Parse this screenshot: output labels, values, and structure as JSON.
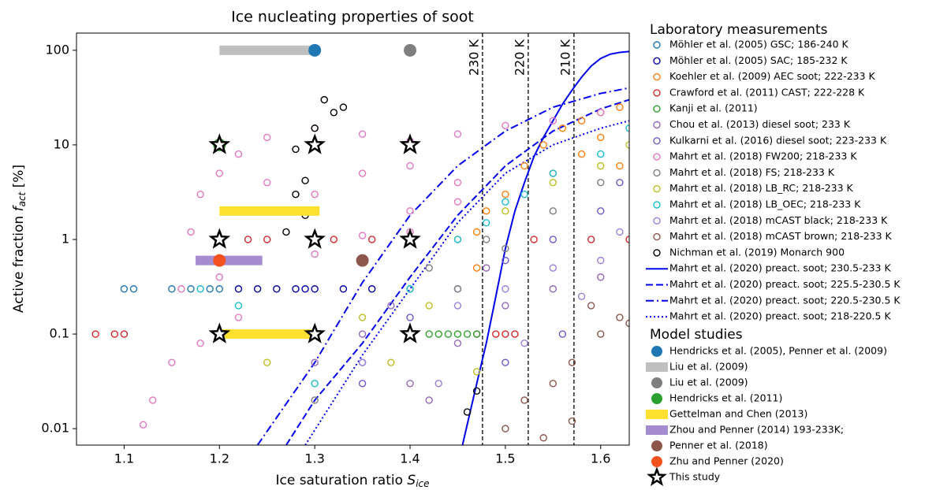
{
  "chart_data": {
    "type": "scatter",
    "title": "Ice nucleating properties of soot",
    "xlabel": "Ice saturation ratio",
    "xlabel_symbol": "S",
    "xlabel_subscript": "ice",
    "ylabel": "Active fraction",
    "ylabel_symbol": "f",
    "ylabel_subscript": "act",
    "ylabel_unit": "[%]",
    "xlim": [
      1.05,
      1.63
    ],
    "ylim": [
      0.0067,
      152
    ],
    "log_y": true,
    "xticks": [
      1.1,
      1.2,
      1.3,
      1.4,
      1.5,
      1.6
    ],
    "yticks": [
      0.01,
      0.1,
      1,
      10,
      100
    ],
    "vlines": [
      {
        "x": 1.476,
        "label": "230 K"
      },
      {
        "x": 1.524,
        "label": "220 K"
      },
      {
        "x": 1.572,
        "label": "210 K"
      }
    ],
    "lab_title": "Laboratory measurements",
    "lab_series": [
      {
        "name": "Möhler et al. (2005) GSC; 186-240 K",
        "color": "#1f77b4",
        "marker": "open-circle",
        "x": [
          1.1,
          1.11,
          1.15,
          1.17,
          1.19,
          1.2
        ],
        "values": [
          0.3,
          0.3,
          0.3,
          0.3,
          0.3,
          0.3
        ]
      },
      {
        "name": "Möhler et al. (2005) SAC; 185-232 K",
        "color": "#0000aa",
        "marker": "open-circle",
        "x": [
          1.22,
          1.24,
          1.26,
          1.28,
          1.29,
          1.3,
          1.33,
          1.36
        ],
        "values": [
          0.3,
          0.3,
          0.3,
          0.3,
          0.3,
          0.3,
          0.3,
          0.3
        ]
      },
      {
        "name": "Koehler et al. (2009) AEC soot; 222-233 K",
        "color": "#ff7f0e",
        "marker": "open-circle",
        "x": [
          1.47,
          1.47,
          1.48,
          1.5,
          1.52,
          1.54,
          1.56,
          1.58,
          1.6,
          1.62,
          1.58,
          1.6,
          1.55,
          1.62
        ],
        "values": [
          0.5,
          1.2,
          2,
          3,
          6,
          10,
          15,
          18,
          22,
          25,
          8,
          12,
          5,
          6
        ]
      },
      {
        "name": "Crawford et al. (2011) CAST; 222-228 K",
        "color": "#d62728",
        "marker": "open-circle",
        "x": [
          1.07,
          1.09,
          1.1,
          1.47,
          1.49,
          1.5,
          1.51,
          1.23,
          1.25,
          1.32,
          1.36,
          1.53,
          1.59,
          1.63
        ],
        "values": [
          0.1,
          0.1,
          0.1,
          0.1,
          0.1,
          0.1,
          0.1,
          1,
          1,
          1,
          1,
          1,
          1,
          1
        ]
      },
      {
        "name": "Kanji et al. (2011)",
        "color": "#2ca02c",
        "marker": "open-circle",
        "x": [
          1.42,
          1.43,
          1.44,
          1.45,
          1.46,
          1.47
        ],
        "values": [
          0.1,
          0.1,
          0.1,
          0.1,
          0.1,
          0.1
        ]
      },
      {
        "name": "Chou et al. (2013) diesel soot; 233 K",
        "color": "#9467bd",
        "marker": "open-circle",
        "x": [
          1.3,
          1.35,
          1.4,
          1.45,
          1.5,
          1.55,
          1.6,
          1.42,
          1.38,
          1.48
        ],
        "values": [
          0.05,
          0.1,
          0.03,
          0.08,
          0.2,
          0.3,
          0.4,
          0.02,
          0.2,
          0.5
        ]
      },
      {
        "name": "Kulkarni et al. (2016) diesel soot; 223-233 K",
        "color": "#6a5acd",
        "marker": "open-circle",
        "x": [
          1.35,
          1.4,
          1.45,
          1.5,
          1.55,
          1.6,
          1.62,
          1.5,
          1.56
        ],
        "values": [
          0.03,
          0.15,
          0.3,
          0.6,
          1,
          2,
          4,
          0.05,
          0.1
        ]
      },
      {
        "name": "Mahrt et al. (2018) FW200; 218-233 K",
        "color": "#e377c2",
        "marker": "open-circle",
        "x": [
          1.13,
          1.15,
          1.16,
          1.17,
          1.18,
          1.2,
          1.22,
          1.25,
          1.3,
          1.35,
          1.4,
          1.45,
          1.5,
          1.55,
          1.6,
          1.25,
          1.3,
          1.35,
          1.4,
          1.45,
          1.35,
          1.4,
          1.45,
          1.2,
          1.22,
          1.18,
          1.12,
          1.25,
          1.3,
          1.4
        ],
        "values": [
          0.02,
          0.05,
          0.3,
          1.2,
          3,
          5,
          8,
          12,
          15,
          13,
          11,
          13,
          16,
          18,
          22,
          4,
          3,
          5,
          6,
          4,
          1.1,
          2,
          2.5,
          0.4,
          0.15,
          0.08,
          0.011,
          2,
          0.7,
          1.2
        ]
      },
      {
        "name": "Mahrt et al. (2018) FS; 218-233 K",
        "color": "#7f7f7f",
        "marker": "open-circle",
        "x": [
          1.3,
          1.35,
          1.4,
          1.45,
          1.5,
          1.55,
          1.6,
          1.42,
          1.48
        ],
        "values": [
          0.02,
          0.05,
          0.1,
          0.3,
          0.8,
          2,
          4,
          0.5,
          1
        ]
      },
      {
        "name": "Mahrt et al. (2018) LB_RC; 218-233 K",
        "color": "#bcbd22",
        "marker": "open-circle",
        "x": [
          1.25,
          1.3,
          1.35,
          1.4,
          1.45,
          1.5,
          1.55,
          1.6,
          1.63,
          1.42,
          1.38,
          1.47
        ],
        "values": [
          0.05,
          0.1,
          0.15,
          0.3,
          1,
          2,
          4,
          6,
          10,
          0.2,
          0.05,
          0.04
        ]
      },
      {
        "name": "Mahrt et al. (2018) LB_OEC; 218-233 K",
        "color": "#17becf",
        "marker": "open-circle",
        "x": [
          1.18,
          1.2,
          1.22,
          1.25,
          1.3,
          1.4,
          1.45,
          1.5,
          1.55,
          1.6,
          1.63,
          1.48,
          1.52
        ],
        "values": [
          0.3,
          0.1,
          0.2,
          0.1,
          0.03,
          0.3,
          1,
          2.5,
          5,
          8,
          15,
          1.5,
          3
        ]
      },
      {
        "name": "Mahrt et al. (2018) mCAST black; 218-233 K",
        "color": "#9b7fdb",
        "marker": "open-circle",
        "x": [
          1.35,
          1.4,
          1.45,
          1.5,
          1.55,
          1.6,
          1.62,
          1.43,
          1.52,
          1.58
        ],
        "values": [
          0.05,
          0.1,
          0.2,
          0.3,
          0.5,
          0.6,
          1.2,
          0.03,
          0.08,
          0.25
        ]
      },
      {
        "name": "Mahrt et al. (2018) mCAST brown; 218-233 K",
        "color": "#8c564b",
        "marker": "open-circle",
        "x": [
          1.5,
          1.52,
          1.55,
          1.57,
          1.6,
          1.62,
          1.63,
          1.54,
          1.59,
          1.57
        ],
        "values": [
          0.01,
          0.02,
          0.03,
          0.05,
          0.1,
          0.15,
          0.13,
          0.008,
          0.2,
          0.012
        ]
      },
      {
        "name": "Nichman et al. (2019) Monarch 900",
        "color": "#000000",
        "marker": "open-circle",
        "x": [
          1.28,
          1.29,
          1.3,
          1.31,
          1.32,
          1.33,
          1.28,
          1.29,
          1.27,
          1.47,
          1.46
        ],
        "values": [
          9,
          4.2,
          15,
          30,
          22,
          25,
          3,
          1.8,
          1.2,
          0.025,
          0.015
        ]
      },
      {
        "name": "Mahrt et al. (2020) preact. soot; 230.5-233 K",
        "color": "#0000ee",
        "marker": "line",
        "linestyle": "solid",
        "x": [
          1.455,
          1.47,
          1.48,
          1.49,
          1.5,
          1.51,
          1.52,
          1.53,
          1.54,
          1.55,
          1.56,
          1.57,
          1.58,
          1.59,
          1.6,
          1.61,
          1.62,
          1.63
        ],
        "values": [
          0.0067,
          0.03,
          0.08,
          0.25,
          0.8,
          2,
          4,
          7.5,
          12,
          18,
          27,
          38,
          52,
          68,
          82,
          91,
          95,
          97
        ]
      },
      {
        "name": "Mahrt et al. (2020) preact. soot; 225.5-230.5 K",
        "color": "#0000ee",
        "marker": "line",
        "linestyle": "dashed",
        "x": [
          1.27,
          1.3,
          1.35,
          1.4,
          1.45,
          1.5,
          1.55,
          1.6,
          1.63
        ],
        "values": [
          0.0067,
          0.02,
          0.08,
          0.4,
          1.8,
          6,
          14,
          24,
          30
        ]
      },
      {
        "name": "Mahrt et al. (2020) preact. soot; 220.5-230.5 K",
        "color": "#0000ee",
        "marker": "line",
        "linestyle": "dashdot",
        "x": [
          1.24,
          1.3,
          1.35,
          1.4,
          1.45,
          1.5,
          1.55,
          1.6,
          1.63
        ],
        "values": [
          0.0067,
          0.05,
          0.35,
          1.8,
          6,
          14,
          25,
          35,
          40
        ]
      },
      {
        "name": "Mahrt et al. (2020) preact. soot; 218-220.5 K",
        "color": "#0000ee",
        "marker": "line",
        "linestyle": "dotted",
        "x": [
          1.29,
          1.35,
          1.4,
          1.45,
          1.5,
          1.55,
          1.6,
          1.63
        ],
        "values": [
          0.0067,
          0.06,
          0.3,
          1.5,
          5,
          10,
          15,
          18
        ]
      }
    ],
    "model_title": "Model studies",
    "model_series": [
      {
        "name": "Hendricks et al. (2005), Penner et al. (2009)",
        "color": "#1f77b4",
        "marker": "filled-circle",
        "x": [
          1.3
        ],
        "values": [
          100
        ]
      },
      {
        "name": "Liu et al. (2009)",
        "color": "#bfbfbf",
        "marker": "bar",
        "x_start": [
          1.2
        ],
        "x_end": [
          1.3
        ],
        "values": [
          100
        ]
      },
      {
        "name": "Liu et al. (2009)",
        "color": "#7f7f7f",
        "marker": "filled-circle",
        "x": [
          1.4
        ],
        "values": [
          100
        ]
      },
      {
        "name": "Hendricks et al. (2011)",
        "color": "#2ca02c",
        "marker": "filled-circle",
        "x": [
          1.2
        ],
        "values": [
          10
        ]
      },
      {
        "name": "Gettelman and Chen (2013)",
        "color": "#fde030",
        "marker": "bar",
        "x_start": [
          1.2,
          1.2
        ],
        "x_end": [
          1.305,
          1.3
        ],
        "values": [
          2,
          0.1
        ]
      },
      {
        "name": "Zhou and Penner (2014) 193-233K;",
        "color": "#a58bd0",
        "marker": "bar",
        "x_start": [
          1.175
        ],
        "x_end": [
          1.245
        ],
        "values": [
          0.6
        ]
      },
      {
        "name": "Penner et al. (2018)",
        "color": "#8c564b",
        "marker": "filled-circle",
        "x": [
          1.35
        ],
        "values": [
          0.6
        ]
      },
      {
        "name": "Zhu and Penner (2020)",
        "color": "#f4511e",
        "marker": "filled-circle",
        "x": [
          1.2
        ],
        "values": [
          0.6
        ]
      },
      {
        "name": "This study",
        "color": "#000000",
        "marker": "star",
        "x": [
          1.2,
          1.3,
          1.4,
          1.2,
          1.3,
          1.4,
          1.2,
          1.3,
          1.4
        ],
        "values": [
          10,
          10,
          10,
          1,
          1,
          1,
          0.1,
          0.1,
          0.1
        ]
      }
    ]
  }
}
